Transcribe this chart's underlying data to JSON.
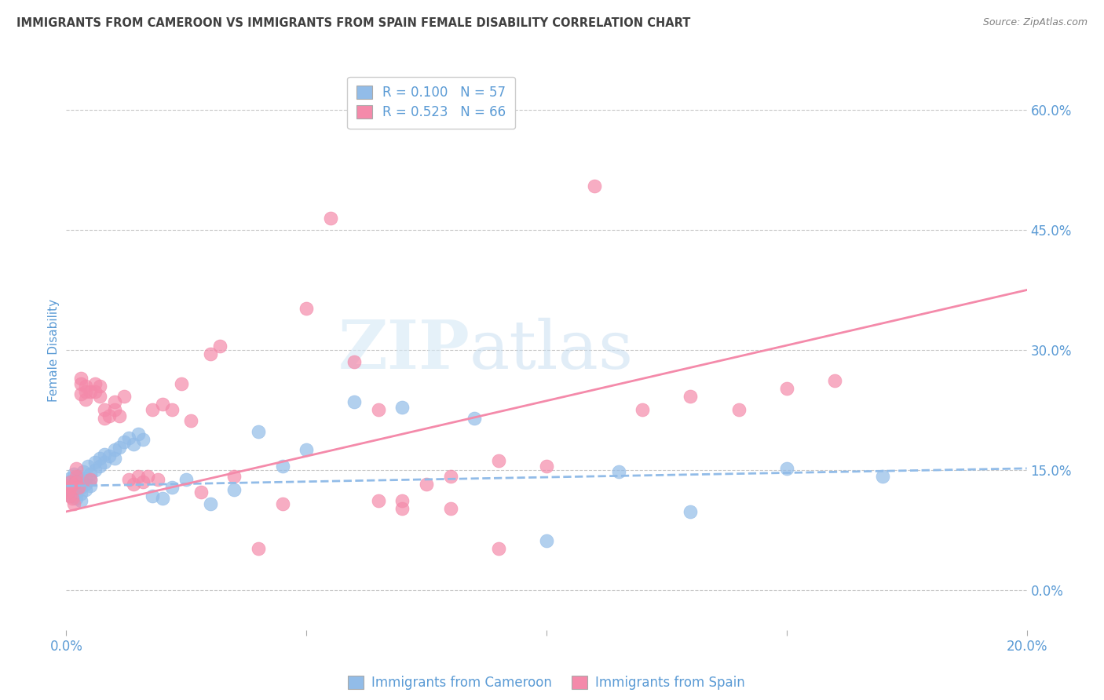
{
  "title": "IMMIGRANTS FROM CAMEROON VS IMMIGRANTS FROM SPAIN FEMALE DISABILITY CORRELATION CHART",
  "source": "Source: ZipAtlas.com",
  "ylabel": "Female Disability",
  "right_yticks": [
    0.0,
    0.15,
    0.3,
    0.45,
    0.6
  ],
  "right_yticklabels": [
    "0.0%",
    "15.0%",
    "30.0%",
    "45.0%",
    "60.0%"
  ],
  "cameroon_color": "#92bce8",
  "spain_color": "#f48aaa",
  "cameroon_R": 0.1,
  "cameroon_N": 57,
  "spain_R": 0.523,
  "spain_N": 66,
  "legend_label_cameroon": "Immigrants from Cameroon",
  "legend_label_spain": "Immigrants from Spain",
  "x_min": 0.0,
  "x_max": 0.2,
  "y_min": -0.05,
  "y_max": 0.65,
  "cameroon_scatter_x": [
    0.0005,
    0.0008,
    0.001,
    0.001,
    0.001,
    0.0012,
    0.0015,
    0.0015,
    0.002,
    0.002,
    0.002,
    0.002,
    0.0025,
    0.003,
    0.003,
    0.003,
    0.003,
    0.0035,
    0.004,
    0.004,
    0.004,
    0.0045,
    0.005,
    0.005,
    0.005,
    0.006,
    0.006,
    0.007,
    0.007,
    0.008,
    0.008,
    0.009,
    0.01,
    0.01,
    0.011,
    0.012,
    0.013,
    0.014,
    0.015,
    0.016,
    0.018,
    0.02,
    0.022,
    0.025,
    0.03,
    0.035,
    0.04,
    0.045,
    0.05,
    0.06,
    0.07,
    0.085,
    0.1,
    0.115,
    0.13,
    0.15,
    0.17
  ],
  "cameroon_scatter_y": [
    0.135,
    0.128,
    0.14,
    0.125,
    0.118,
    0.132,
    0.145,
    0.12,
    0.138,
    0.13,
    0.122,
    0.115,
    0.142,
    0.135,
    0.128,
    0.12,
    0.112,
    0.148,
    0.14,
    0.132,
    0.125,
    0.155,
    0.145,
    0.138,
    0.13,
    0.16,
    0.15,
    0.165,
    0.155,
    0.17,
    0.16,
    0.168,
    0.175,
    0.165,
    0.178,
    0.185,
    0.19,
    0.182,
    0.195,
    0.188,
    0.118,
    0.115,
    0.128,
    0.138,
    0.108,
    0.125,
    0.198,
    0.155,
    0.175,
    0.235,
    0.228,
    0.215,
    0.062,
    0.148,
    0.098,
    0.152,
    0.142
  ],
  "spain_scatter_x": [
    0.0003,
    0.0005,
    0.0008,
    0.001,
    0.001,
    0.0012,
    0.0015,
    0.002,
    0.002,
    0.002,
    0.0025,
    0.003,
    0.003,
    0.003,
    0.004,
    0.004,
    0.004,
    0.005,
    0.005,
    0.006,
    0.006,
    0.007,
    0.007,
    0.008,
    0.008,
    0.009,
    0.01,
    0.01,
    0.011,
    0.012,
    0.013,
    0.014,
    0.015,
    0.016,
    0.017,
    0.018,
    0.019,
    0.02,
    0.022,
    0.024,
    0.026,
    0.028,
    0.03,
    0.032,
    0.035,
    0.04,
    0.045,
    0.05,
    0.055,
    0.06,
    0.065,
    0.07,
    0.075,
    0.08,
    0.09,
    0.1,
    0.11,
    0.12,
    0.13,
    0.14,
    0.15,
    0.16,
    0.065,
    0.07,
    0.08,
    0.09
  ],
  "spain_scatter_y": [
    0.13,
    0.122,
    0.118,
    0.135,
    0.128,
    0.115,
    0.108,
    0.152,
    0.142,
    0.135,
    0.128,
    0.265,
    0.258,
    0.245,
    0.255,
    0.248,
    0.238,
    0.248,
    0.138,
    0.258,
    0.248,
    0.242,
    0.255,
    0.225,
    0.215,
    0.218,
    0.235,
    0.225,
    0.218,
    0.242,
    0.138,
    0.132,
    0.142,
    0.135,
    0.142,
    0.225,
    0.138,
    0.232,
    0.225,
    0.258,
    0.212,
    0.122,
    0.295,
    0.305,
    0.142,
    0.052,
    0.108,
    0.352,
    0.465,
    0.285,
    0.225,
    0.112,
    0.132,
    0.142,
    0.162,
    0.155,
    0.505,
    0.225,
    0.242,
    0.225,
    0.252,
    0.262,
    0.112,
    0.102,
    0.102,
    0.052
  ],
  "watermark_zip": "ZIP",
  "watermark_atlas": "atlas",
  "background_color": "#ffffff",
  "grid_color": "#c8c8c8",
  "title_color": "#404040",
  "axis_label_color": "#5b9bd5",
  "tick_color": "#5b9bd5",
  "legend_text_color": "#5b9bd5",
  "source_color": "#808080"
}
